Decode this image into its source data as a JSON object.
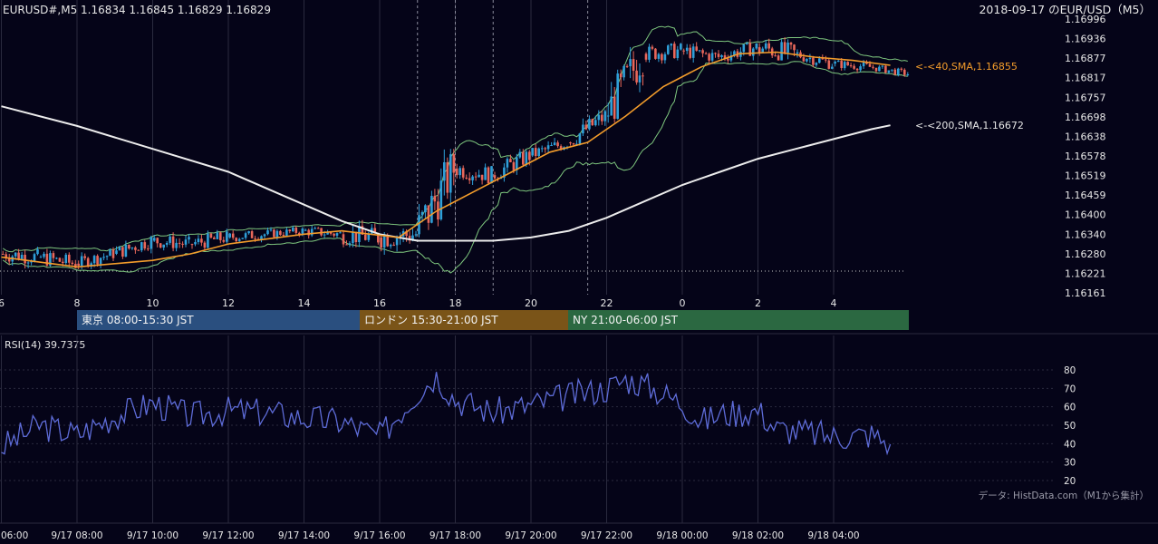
{
  "header": {
    "symbol_line": "EURUSD#,M5 1.16834 1.16845 1.16829 1.16829",
    "title": "2018-09-17 のEUR/USD（M5）"
  },
  "price_axis": {
    "labels": [
      "1.16996",
      "1.16936",
      "1.16877",
      "1.16817",
      "1.16757",
      "1.16698",
      "1.16638",
      "1.16578",
      "1.16519",
      "1.16459",
      "1.16400",
      "1.16340",
      "1.16280",
      "1.16221",
      "1.16161"
    ]
  },
  "hour_axis": {
    "labels": [
      "6",
      "8",
      "10",
      "12",
      "14",
      "16",
      "18",
      "20",
      "22",
      "0",
      "2",
      "4"
    ]
  },
  "ma_labels": {
    "sma40": "<-<40,SMA,1.16855",
    "sma200": "<-<200,SMA,1.16672"
  },
  "sessions": [
    {
      "label": "東京 08:00-15:30 JST",
      "color": "#2a4f7f"
    },
    {
      "label": "ロンドン 15:30-21:00 JST",
      "color": "#7a5418"
    },
    {
      "label": "NY 21:00-06:00 JST",
      "color": "#2b6841"
    }
  ],
  "rsi": {
    "title": "RSI(14) 39.7375",
    "axis_labels": [
      "80",
      "70",
      "60",
      "50",
      "40",
      "30",
      "20"
    ]
  },
  "footer": {
    "credit": "データ: HistData.com（M1から集計）",
    "time_labels": [
      "06:00",
      "9/17 08:00",
      "9/17 10:00",
      "9/17 12:00",
      "9/17 14:00",
      "9/17 16:00",
      "9/17 18:00",
      "9/17 20:00",
      "9/17 22:00",
      "9/18 00:00",
      "9/18 02:00",
      "9/18 04:00"
    ]
  },
  "colors": {
    "background": "#050418",
    "grid": "#2a2a3e",
    "bull": "#2f9fd8",
    "bear": "#e8675a",
    "bollinger": "#7fc87f",
    "sma40": "#f39c2b",
    "sma200": "#ececec",
    "rsi": "#5e6cd8"
  },
  "chart_data": [
    {
      "type": "candlestick",
      "title": "2018-09-17 のEUR/USD（M5）",
      "x_unit": "hour (JST)",
      "ylim": [
        1.16161,
        1.16996
      ],
      "x_ticks": [
        "6",
        "8",
        "10",
        "12",
        "14",
        "16",
        "18",
        "20",
        "22",
        "0",
        "2",
        "4"
      ],
      "series": [
        {
          "name": "40,SMA",
          "last": 1.16855,
          "points": [
            [
              6,
              1.1627
            ],
            [
              8,
              1.1624
            ],
            [
              10,
              1.1626
            ],
            [
              11,
              1.1628
            ],
            [
              12,
              1.1631
            ],
            [
              14,
              1.1634
            ],
            [
              15,
              1.1635
            ],
            [
              16.5,
              1.1633
            ],
            [
              17.5,
              1.1641
            ],
            [
              18.5,
              1.1647
            ],
            [
              19.5,
              1.1653
            ],
            [
              20.5,
              1.1659
            ],
            [
              21.5,
              1.1662
            ],
            [
              22.5,
              1.167
            ],
            [
              23.5,
              1.1679
            ],
            [
              0.5,
              1.1685
            ],
            [
              1.5,
              1.1689
            ],
            [
              2.5,
              1.16895
            ],
            [
              3.5,
              1.1688
            ],
            [
              4.5,
              1.1687
            ],
            [
              5.5,
              1.16855
            ]
          ]
        },
        {
          "name": "200,SMA",
          "last": 1.16672,
          "points": [
            [
              6,
              1.1673
            ],
            [
              8,
              1.1667
            ],
            [
              10,
              1.166
            ],
            [
              12,
              1.1653
            ],
            [
              14,
              1.1643
            ],
            [
              15,
              1.1638
            ],
            [
              16,
              1.1634
            ],
            [
              17,
              1.1632
            ],
            [
              18,
              1.1632
            ],
            [
              19,
              1.1632
            ],
            [
              20,
              1.1633
            ],
            [
              21,
              1.1635
            ],
            [
              22,
              1.1639
            ],
            [
              23,
              1.1644
            ],
            [
              0,
              1.1649
            ],
            [
              1,
              1.1653
            ],
            [
              2,
              1.1657
            ],
            [
              3,
              1.166
            ],
            [
              4,
              1.1663
            ],
            [
              5,
              1.1666
            ],
            [
              5.5,
              1.16672
            ]
          ]
        }
      ],
      "candles_ohlc_hourly": [
        [
          "06:00",
          1.1628,
          1.1632,
          1.1623,
          1.1627
        ],
        [
          "07:00",
          1.1627,
          1.1631,
          1.1622,
          1.1625
        ],
        [
          "08:00",
          1.1625,
          1.163,
          1.1623,
          1.1628
        ],
        [
          "09:00",
          1.1628,
          1.1634,
          1.1626,
          1.1632
        ],
        [
          "10:00",
          1.1632,
          1.1636,
          1.1628,
          1.1631
        ],
        [
          "11:00",
          1.1631,
          1.1636,
          1.1628,
          1.1633
        ],
        [
          "12:00",
          1.1633,
          1.1637,
          1.1631,
          1.1634
        ],
        [
          "13:00",
          1.1634,
          1.1637,
          1.1632,
          1.1635
        ],
        [
          "14:00",
          1.1635,
          1.1638,
          1.1632,
          1.1634
        ],
        [
          "15:00",
          1.1634,
          1.1641,
          1.163,
          1.1633
        ],
        [
          "16:00",
          1.1633,
          1.1636,
          1.1623,
          1.1634
        ],
        [
          "17:00",
          1.1634,
          1.166,
          1.1633,
          1.1654
        ],
        [
          "18:00",
          1.1654,
          1.1659,
          1.1649,
          1.1652
        ],
        [
          "19:00",
          1.1652,
          1.166,
          1.165,
          1.1658
        ],
        [
          "20:00",
          1.1658,
          1.1664,
          1.1656,
          1.1662
        ],
        [
          "21:00",
          1.1662,
          1.1672,
          1.1661,
          1.167
        ],
        [
          "22:00",
          1.167,
          1.1693,
          1.1668,
          1.1689
        ],
        [
          "23:00",
          1.1689,
          1.1695,
          1.1686,
          1.169
        ],
        [
          "00:00",
          1.169,
          1.1693,
          1.1685,
          1.1688
        ],
        [
          "01:00",
          1.1688,
          1.1694,
          1.1686,
          1.1691
        ],
        [
          "02:00",
          1.1691,
          1.16985,
          1.1687,
          1.1689
        ],
        [
          "03:00",
          1.1689,
          1.1691,
          1.1684,
          1.1686
        ],
        [
          "04:00",
          1.1686,
          1.1688,
          1.1683,
          1.1685
        ],
        [
          "05:00",
          1.1685,
          1.1686,
          1.1682,
          1.16829
        ]
      ]
    },
    {
      "type": "line",
      "title": "RSI(14) 39.7375",
      "ylim": [
        20,
        80
      ],
      "last": 39.7375,
      "values_by_hour": [
        [
          6,
          38
        ],
        [
          7,
          50
        ],
        [
          8,
          45
        ],
        [
          9,
          55
        ],
        [
          10,
          62
        ],
        [
          11,
          55
        ],
        [
          12,
          58
        ],
        [
          13,
          57
        ],
        [
          14,
          54
        ],
        [
          15,
          52
        ],
        [
          16,
          44
        ],
        [
          17,
          68
        ],
        [
          17.5,
          77
        ],
        [
          18,
          64
        ],
        [
          19,
          57
        ],
        [
          20,
          61
        ],
        [
          21,
          66
        ],
        [
          22,
          70
        ],
        [
          22.5,
          75
        ],
        [
          23,
          72
        ],
        [
          0,
          62
        ],
        [
          0.5,
          52
        ],
        [
          1,
          56
        ],
        [
          2,
          58
        ],
        [
          2.5,
          48
        ],
        [
          3,
          47
        ],
        [
          4,
          44
        ],
        [
          5,
          45
        ],
        [
          5.5,
          40
        ]
      ]
    }
  ]
}
